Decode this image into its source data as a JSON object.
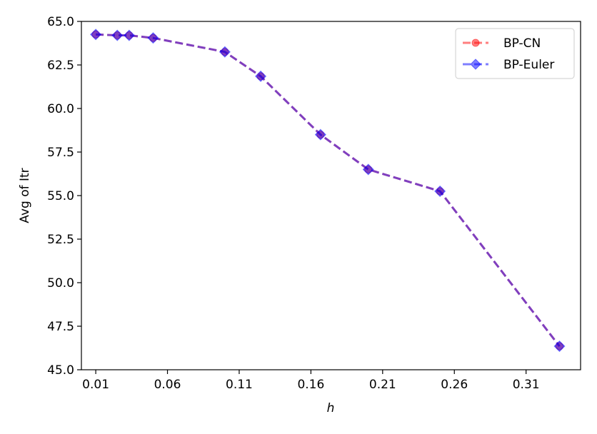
{
  "chart_data": {
    "type": "line",
    "title": "",
    "xlabel": "h",
    "ylabel": "Avg of Itr",
    "xlim": [
      0.0,
      0.348
    ],
    "ylim": [
      45.0,
      65.0
    ],
    "xticks": [
      0.01,
      0.06,
      0.11,
      0.16,
      0.21,
      0.26,
      0.31
    ],
    "xtick_labels": [
      "0.01",
      "0.06",
      "0.11",
      "0.16",
      "0.21",
      "0.26",
      "0.31"
    ],
    "yticks": [
      45.0,
      47.5,
      50.0,
      52.5,
      55.0,
      57.5,
      60.0,
      62.5,
      65.0
    ],
    "ytick_labels": [
      "45.0",
      "47.5",
      "50.0",
      "52.5",
      "55.0",
      "57.5",
      "60.0",
      "62.5",
      "65.0"
    ],
    "grid": false,
    "legend_position": "top-right",
    "x": [
      0.01,
      0.025,
      0.0333,
      0.05,
      0.1,
      0.125,
      0.1667,
      0.2,
      0.25,
      0.3333
    ],
    "series": [
      {
        "name": "BP-CN",
        "marker": "circle",
        "color": "#ff0000",
        "values": [
          64.25,
          64.2,
          64.2,
          64.05,
          63.25,
          61.85,
          58.5,
          56.5,
          55.25,
          46.35
        ]
      },
      {
        "name": "BP-Euler",
        "marker": "diamond",
        "color": "#0000ff",
        "values": [
          64.25,
          64.2,
          64.2,
          64.05,
          63.25,
          61.85,
          58.5,
          56.5,
          55.25,
          46.35
        ]
      }
    ]
  }
}
